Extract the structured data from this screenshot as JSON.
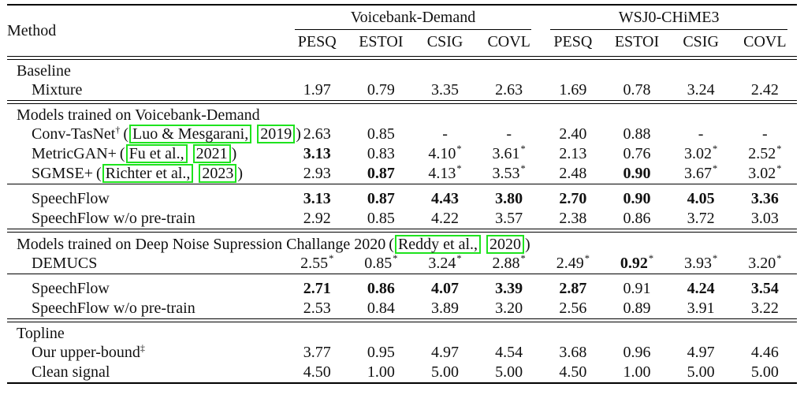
{
  "colors": {
    "background": "#ffffff",
    "text": "#111111",
    "rule": "#000000",
    "citation_link_box": "#1ee31e"
  },
  "table": {
    "method_label": "Method",
    "punct": {
      "open": "(",
      "close": ")"
    },
    "groups": [
      {
        "label": "Voicebank-Demand",
        "metrics": [
          "PESQ",
          "ESTOI",
          "CSIG",
          "COVL"
        ]
      },
      {
        "label": "WSJ0-CHiME3",
        "metrics": [
          "PESQ",
          "ESTOI",
          "CSIG",
          "COVL"
        ]
      }
    ],
    "rows": [
      {
        "type": "rule",
        "style": "double"
      },
      {
        "type": "section",
        "label": "Baseline"
      },
      {
        "type": "data",
        "method": {
          "name": "Mixture"
        },
        "cells": [
          {
            "v": "1.97"
          },
          {
            "v": "0.79"
          },
          {
            "v": "3.35"
          },
          {
            "v": "2.63"
          },
          {
            "v": "1.69"
          },
          {
            "v": "0.78"
          },
          {
            "v": "3.24"
          },
          {
            "v": "2.42"
          }
        ]
      },
      {
        "type": "rule",
        "style": "double"
      },
      {
        "type": "section",
        "label": "Models trained on Voicebank-Demand"
      },
      {
        "type": "data",
        "method": {
          "name": "Conv-TasNet",
          "sup": "†",
          "cite": {
            "author": "Luo & Mesgarani,",
            "year": "2019"
          }
        },
        "cells": [
          {
            "v": "2.63"
          },
          {
            "v": "0.85"
          },
          {
            "v": "-"
          },
          {
            "v": "-"
          },
          {
            "v": "2.40"
          },
          {
            "v": "0.88"
          },
          {
            "v": "-"
          },
          {
            "v": "-"
          }
        ]
      },
      {
        "type": "data",
        "method": {
          "name": "MetricGAN+",
          "cite": {
            "author": "Fu et al.,",
            "year": "2021"
          }
        },
        "cells": [
          {
            "v": "3.13",
            "b": true
          },
          {
            "v": "0.83"
          },
          {
            "v": "4.10",
            "s": "*"
          },
          {
            "v": "3.61",
            "s": "*"
          },
          {
            "v": "2.13"
          },
          {
            "v": "0.76"
          },
          {
            "v": "3.02",
            "s": "*"
          },
          {
            "v": "2.52",
            "s": "*"
          }
        ]
      },
      {
        "type": "data",
        "method": {
          "name": "SGMSE+",
          "cite": {
            "author": "Richter et al.,",
            "year": "2023"
          }
        },
        "cells": [
          {
            "v": "2.93"
          },
          {
            "v": "0.87",
            "b": true
          },
          {
            "v": "4.13",
            "s": "*"
          },
          {
            "v": "3.53",
            "s": "*"
          },
          {
            "v": "2.48"
          },
          {
            "v": "0.90",
            "b": true
          },
          {
            "v": "3.67",
            "s": "*"
          },
          {
            "v": "3.02",
            "s": "*"
          }
        ]
      },
      {
        "type": "rule",
        "style": "single"
      },
      {
        "type": "data",
        "method": {
          "name": "SpeechFlow"
        },
        "cells": [
          {
            "v": "3.13",
            "b": true
          },
          {
            "v": "0.87",
            "b": true
          },
          {
            "v": "4.43",
            "b": true
          },
          {
            "v": "3.80",
            "b": true
          },
          {
            "v": "2.70",
            "b": true
          },
          {
            "v": "0.90",
            "b": true
          },
          {
            "v": "4.05",
            "b": true
          },
          {
            "v": "3.36",
            "b": true
          }
        ]
      },
      {
        "type": "data",
        "method": {
          "name": "SpeechFlow w/o pre-train"
        },
        "cells": [
          {
            "v": "2.92"
          },
          {
            "v": "0.85"
          },
          {
            "v": "4.22"
          },
          {
            "v": "3.57"
          },
          {
            "v": "2.38"
          },
          {
            "v": "0.86"
          },
          {
            "v": "3.72"
          },
          {
            "v": "3.03"
          }
        ]
      },
      {
        "type": "rule",
        "style": "double"
      },
      {
        "type": "section",
        "label": "Models trained on Deep Noise Supression Challange 2020",
        "cite": {
          "author": "Reddy et al.,",
          "year": "2020"
        }
      },
      {
        "type": "data",
        "method": {
          "name": "DEMUCS"
        },
        "cells": [
          {
            "v": "2.55",
            "s": "*"
          },
          {
            "v": "0.85",
            "s": "*"
          },
          {
            "v": "3.24",
            "s": "*"
          },
          {
            "v": "2.88",
            "s": "*"
          },
          {
            "v": "2.49",
            "s": "*"
          },
          {
            "v": "0.92",
            "b": true,
            "s": "*"
          },
          {
            "v": "3.93",
            "s": "*"
          },
          {
            "v": "3.20",
            "s": "*"
          }
        ]
      },
      {
        "type": "rule",
        "style": "single"
      },
      {
        "type": "data",
        "method": {
          "name": "SpeechFlow"
        },
        "cells": [
          {
            "v": "2.71",
            "b": true
          },
          {
            "v": "0.86",
            "b": true
          },
          {
            "v": "4.07",
            "b": true
          },
          {
            "v": "3.39",
            "b": true
          },
          {
            "v": "2.87",
            "b": true
          },
          {
            "v": "0.91"
          },
          {
            "v": "4.24",
            "b": true
          },
          {
            "v": "3.54",
            "b": true
          }
        ]
      },
      {
        "type": "data",
        "method": {
          "name": "SpeechFlow w/o pre-train"
        },
        "cells": [
          {
            "v": "2.53"
          },
          {
            "v": "0.84"
          },
          {
            "v": "3.89"
          },
          {
            "v": "3.20"
          },
          {
            "v": "2.56"
          },
          {
            "v": "0.89"
          },
          {
            "v": "3.91"
          },
          {
            "v": "3.22"
          }
        ]
      },
      {
        "type": "rule",
        "style": "double"
      },
      {
        "type": "section",
        "label": "Topline"
      },
      {
        "type": "data",
        "method": {
          "name": "Our upper-bound",
          "sup": "‡"
        },
        "cells": [
          {
            "v": "3.77"
          },
          {
            "v": "0.95"
          },
          {
            "v": "4.97"
          },
          {
            "v": "4.54"
          },
          {
            "v": "3.68"
          },
          {
            "v": "0.96"
          },
          {
            "v": "4.97"
          },
          {
            "v": "4.46"
          }
        ]
      },
      {
        "type": "data",
        "method": {
          "name": "Clean signal"
        },
        "cells": [
          {
            "v": "4.50"
          },
          {
            "v": "1.00"
          },
          {
            "v": "5.00"
          },
          {
            "v": "5.00"
          },
          {
            "v": "4.50"
          },
          {
            "v": "1.00"
          },
          {
            "v": "5.00"
          },
          {
            "v": "5.00"
          }
        ]
      },
      {
        "type": "rule",
        "style": "thick"
      }
    ]
  }
}
